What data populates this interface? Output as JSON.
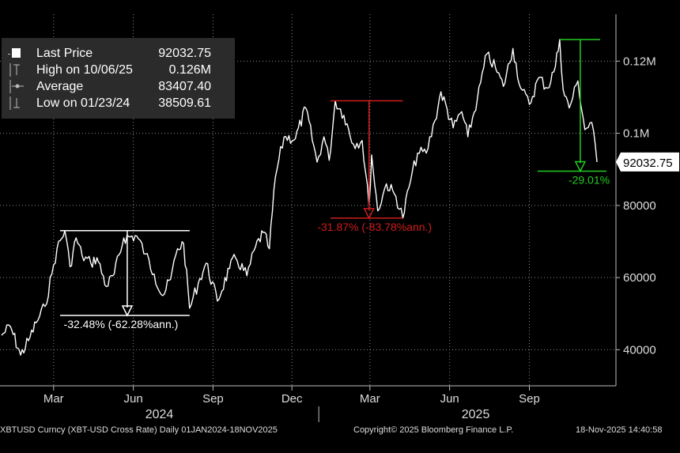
{
  "legend": {
    "items": [
      {
        "label": "Last Price",
        "value": "92032.75"
      },
      {
        "label": "High on 10/06/25",
        "value": "0.126M"
      },
      {
        "label": "Average",
        "value": "83407.40"
      },
      {
        "label": "Low on 01/23/24",
        "value": "38509.61"
      }
    ]
  },
  "last_price_tag": "92032.75",
  "footer": {
    "left": "XBTUSD Curncy (XBT-USD Cross Rate) Daily 01JAN2024-18NOV2025",
    "center": "Copyright© 2025 Bloomberg Finance L.P.",
    "right": "18-Nov-2025 14:40:58"
  },
  "chart_data": {
    "type": "line",
    "title": "",
    "xlabel": "",
    "ylabel": "",
    "ylim": [
      30000,
      133000
    ],
    "y_ticks": [
      40000,
      60000,
      80000,
      100000,
      120000
    ],
    "y_tick_labels": [
      "40000",
      "60000",
      "80000",
      "0.1M",
      "0.12M"
    ],
    "x_range": [
      "2024-01-01",
      "2025-11-18"
    ],
    "x_ticks": [
      {
        "date": "2024-03-01",
        "label": "Mar"
      },
      {
        "date": "2024-06-01",
        "label": "Jun"
      },
      {
        "date": "2024-09-01",
        "label": "Sep"
      },
      {
        "date": "2024-12-01",
        "label": "Dec"
      },
      {
        "date": "2025-03-01",
        "label": "Mar"
      },
      {
        "date": "2025-06-01",
        "label": "Jun"
      },
      {
        "date": "2025-09-01",
        "label": "Sep"
      }
    ],
    "year_labels": [
      {
        "date": "2024-07-01",
        "label": "2024"
      },
      {
        "date": "2025-07-01",
        "label": "2025"
      }
    ],
    "grid": true,
    "series": [
      {
        "points": [
          [
            "2024-01-01",
            44000
          ],
          [
            "2024-01-11",
            46500
          ],
          [
            "2024-01-23",
            38510
          ],
          [
            "2024-02-01",
            42500
          ],
          [
            "2024-02-10",
            47500
          ],
          [
            "2024-02-20",
            52000
          ],
          [
            "2024-02-28",
            61000
          ],
          [
            "2024-03-05",
            68000
          ],
          [
            "2024-03-14",
            73000
          ],
          [
            "2024-03-20",
            63000
          ],
          [
            "2024-03-27",
            71000
          ],
          [
            "2024-04-03",
            66000
          ],
          [
            "2024-04-13",
            64000
          ],
          [
            "2024-04-20",
            65500
          ],
          [
            "2024-05-01",
            57500
          ],
          [
            "2024-05-10",
            61000
          ],
          [
            "2024-05-21",
            71000
          ],
          [
            "2024-06-05",
            71500
          ],
          [
            "2024-06-15",
            66500
          ],
          [
            "2024-06-25",
            61000
          ],
          [
            "2024-07-05",
            55000
          ],
          [
            "2024-07-14",
            59500
          ],
          [
            "2024-07-22",
            68000
          ],
          [
            "2024-07-29",
            69500
          ],
          [
            "2024-08-05",
            51500
          ],
          [
            "2024-08-15",
            58500
          ],
          [
            "2024-08-24",
            64000
          ],
          [
            "2024-09-06",
            53500
          ],
          [
            "2024-09-20",
            62500
          ],
          [
            "2024-09-27",
            65500
          ],
          [
            "2024-10-10",
            60500
          ],
          [
            "2024-10-20",
            68500
          ],
          [
            "2024-10-29",
            72500
          ],
          [
            "2024-11-05",
            68000
          ],
          [
            "2024-11-12",
            88000
          ],
          [
            "2024-11-22",
            99000
          ],
          [
            "2024-12-05",
            98500
          ],
          [
            "2024-12-17",
            107000
          ],
          [
            "2024-12-30",
            92000
          ],
          [
            "2025-01-07",
            99000
          ],
          [
            "2025-01-13",
            92500
          ],
          [
            "2025-01-20",
            109000
          ],
          [
            "2025-01-30",
            105000
          ],
          [
            "2025-02-10",
            97000
          ],
          [
            "2025-02-20",
            98000
          ],
          [
            "2025-02-28",
            80000
          ],
          [
            "2025-03-03",
            94000
          ],
          [
            "2025-03-10",
            78500
          ],
          [
            "2025-03-20",
            86000
          ],
          [
            "2025-03-31",
            82500
          ],
          [
            "2025-04-08",
            76500
          ],
          [
            "2025-04-15",
            85000
          ],
          [
            "2025-04-25",
            94500
          ],
          [
            "2025-05-05",
            94500
          ],
          [
            "2025-05-15",
            103500
          ],
          [
            "2025-05-22",
            111500
          ],
          [
            "2025-06-05",
            101500
          ],
          [
            "2025-06-15",
            106000
          ],
          [
            "2025-06-22",
            99000
          ],
          [
            "2025-07-03",
            109500
          ],
          [
            "2025-07-14",
            122000
          ],
          [
            "2025-07-24",
            118000
          ],
          [
            "2025-08-02",
            113000
          ],
          [
            "2025-08-13",
            123500
          ],
          [
            "2025-08-22",
            112500
          ],
          [
            "2025-09-01",
            108000
          ],
          [
            "2025-09-12",
            115500
          ],
          [
            "2025-09-22",
            112500
          ],
          [
            "2025-10-01",
            118500
          ],
          [
            "2025-10-06",
            126000
          ],
          [
            "2025-10-10",
            112000
          ],
          [
            "2025-10-17",
            107000
          ],
          [
            "2025-10-27",
            114500
          ],
          [
            "2025-11-04",
            101000
          ],
          [
            "2025-11-12",
            103000
          ],
          [
            "2025-11-18",
            92033
          ]
        ]
      }
    ],
    "annotations": [
      {
        "color": "#ffffff",
        "text": "-32.48% (-62.28%ann.)",
        "from": {
          "date": "2024-03-14",
          "value": 73000
        },
        "to": {
          "date": "2024-08-05",
          "value": 49500
        },
        "line_end_date": "2024-08-05"
      },
      {
        "color": "#d01c1c",
        "text": "-31.87% (-83.78%ann.)",
        "from": {
          "date": "2025-01-20",
          "value": 109000
        },
        "to": {
          "date": "2025-04-08",
          "value": 76500
        },
        "line_end_date": "2025-04-08"
      },
      {
        "color": "#22cc22",
        "text": "-29.01%",
        "from": {
          "date": "2025-10-06",
          "value": 126000
        },
        "to": {
          "date": "2025-11-18",
          "value": 89500
        },
        "line_end_date": "2025-11-18"
      }
    ]
  }
}
